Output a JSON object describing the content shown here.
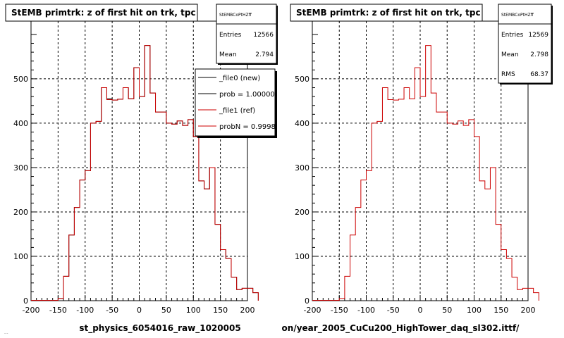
{
  "chart_data": [
    {
      "type": "histogram",
      "title": "StEMB primtrk: z of first hit on trk, tpc",
      "xlabel": "st_physics_6054016_raw_1020005",
      "ylabel": "",
      "xlim": [
        -200,
        200
      ],
      "ylim": [
        0,
        630
      ],
      "x_ticks": [
        -200,
        -150,
        -100,
        -50,
        0,
        50,
        100,
        150,
        200
      ],
      "y_ticks": [
        0,
        100,
        200,
        300,
        400,
        500
      ],
      "grid": true,
      "bin_edges_start": -150,
      "bin_width": 10,
      "series": [
        {
          "name": "_file0 (new)",
          "color": "#000000",
          "values": [
            5,
            55,
            148,
            210,
            272,
            293,
            400,
            404,
            480,
            455,
            452,
            454,
            480,
            455,
            525,
            460,
            575,
            468,
            425,
            425,
            400,
            398,
            405,
            395,
            408,
            370,
            270,
            252,
            300,
            172,
            115,
            95,
            53,
            25,
            28,
            28,
            18
          ]
        },
        {
          "name": "_file1 (ref)",
          "color": "#cc0000",
          "values": [
            5,
            55,
            148,
            210,
            272,
            293,
            400,
            404,
            480,
            453,
            452,
            454,
            480,
            455,
            525,
            460,
            575,
            468,
            425,
            425,
            400,
            398,
            405,
            395,
            408,
            370,
            270,
            252,
            300,
            172,
            115,
            95,
            53,
            25,
            28,
            28,
            18
          ]
        }
      ],
      "stats_box": {
        "name": "StEMBCoPtHZff",
        "entries_label": "Entries",
        "entries": "12566",
        "mean_label": "Mean",
        "mean": "2.794"
      },
      "legend": [
        {
          "label": "_file0 (new)",
          "color": "#000000"
        },
        {
          "label": "prob = 1.000000",
          "color": "#000000"
        },
        {
          "label": "_file1 (ref)",
          "color": "#cc0000"
        },
        {
          "label": "probN = 0.99988",
          "color": "#cc0000"
        }
      ],
      "legend_position": "top-right"
    },
    {
      "type": "histogram",
      "title": "StEMB primtrk: z of first hit on trk, tpc",
      "xlabel": "on/year_2005_CuCu200_HighTower_daq_sl302.ittf/",
      "ylabel": "",
      "xlim": [
        -200,
        200
      ],
      "ylim": [
        0,
        630
      ],
      "x_ticks": [
        -200,
        -150,
        -100,
        -50,
        0,
        50,
        100,
        150,
        200
      ],
      "y_ticks": [
        0,
        100,
        200,
        300,
        400,
        500
      ],
      "grid": true,
      "bin_edges_start": -150,
      "bin_width": 10,
      "series": [
        {
          "name": "",
          "color": "#cc0000",
          "values": [
            5,
            55,
            148,
            210,
            272,
            293,
            400,
            404,
            480,
            453,
            452,
            454,
            480,
            455,
            525,
            460,
            575,
            468,
            425,
            425,
            400,
            398,
            405,
            395,
            408,
            370,
            270,
            252,
            300,
            172,
            115,
            95,
            53,
            25,
            28,
            28,
            18
          ]
        }
      ],
      "stats_box": {
        "name": "StEMBCoPtHZff",
        "entries_label": "Entries",
        "entries": "12569",
        "mean_label": "Mean",
        "mean": "2.798",
        "rms_label": "RMS",
        "rms": "68.37"
      }
    }
  ],
  "footnote": "..."
}
